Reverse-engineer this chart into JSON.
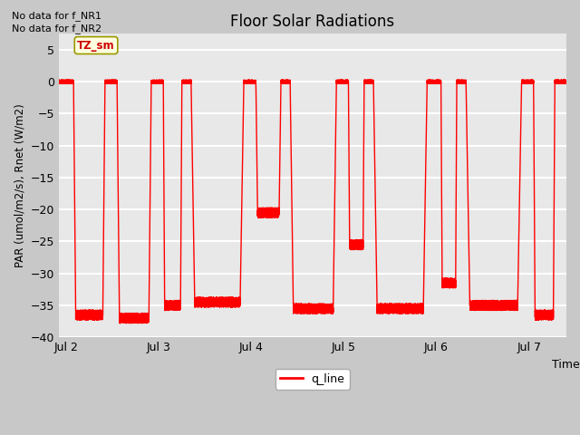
{
  "title": "Floor Solar Radiations",
  "xlabel": "Time",
  "ylabel": "PAR (umol/m2/s), Rnet (W/m2)",
  "ylim": [
    -40,
    7.5
  ],
  "yticks": [
    5,
    0,
    -5,
    -10,
    -15,
    -20,
    -25,
    -30,
    -35,
    -40
  ],
  "xtick_labels": [
    "Jul 2",
    "Jul 3",
    "Jul 4",
    "Jul 5",
    "Jul 6",
    "Jul 7"
  ],
  "xtick_positions": [
    0,
    1,
    2,
    3,
    4,
    5
  ],
  "line_color": "#ff0000",
  "legend_label": "q_line",
  "no_data_text1": "No data for f_NR1",
  "no_data_text2": "No data for f_NR2",
  "annotation_label": "TZ_sm",
  "bg_color": "#e8e8e8",
  "grid_color": "#ffffff",
  "annotation_bg": "#ffffe0",
  "annotation_border": "#999900",
  "fig_bg": "#c8c8c8",
  "xlim": [
    -0.08,
    5.4
  ]
}
